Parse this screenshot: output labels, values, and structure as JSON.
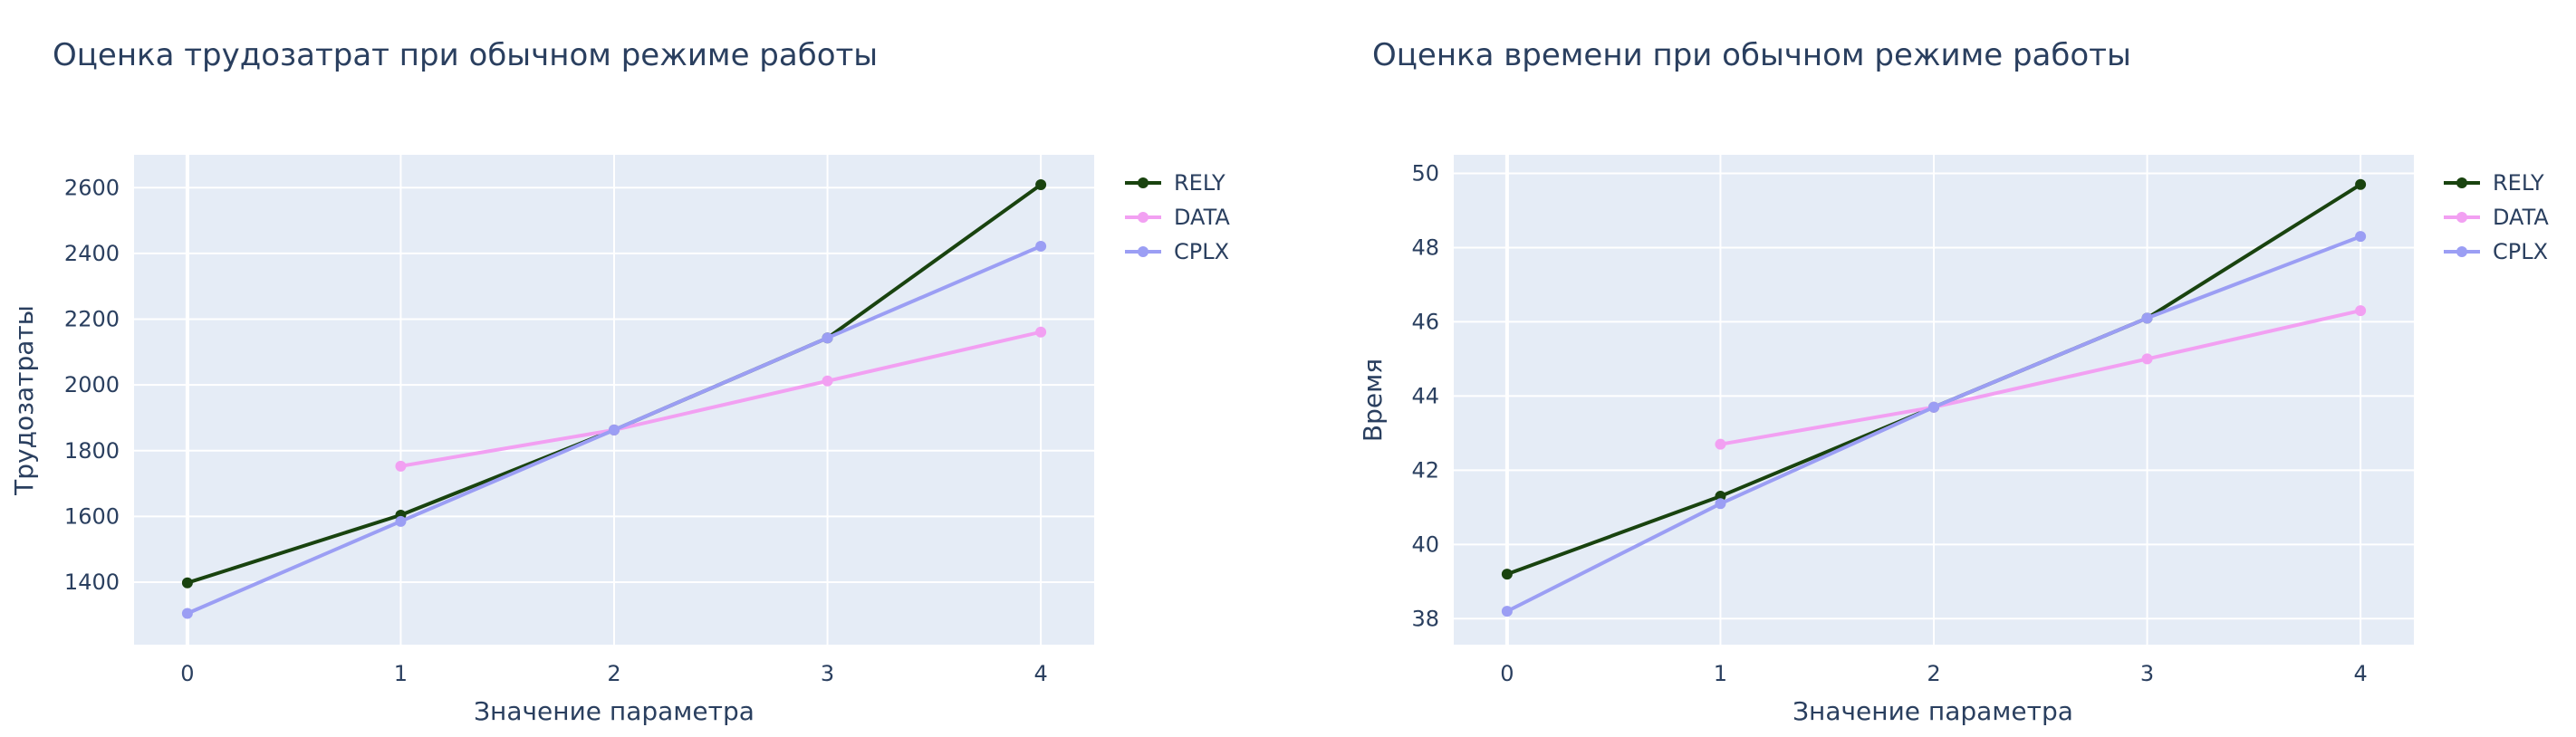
{
  "chart_data": [
    {
      "type": "line",
      "title": "Оценка трудозатрат при обычном режиме работы",
      "xlabel": "Значение параметра",
      "ylabel": "Трудозатраты",
      "x": [
        0,
        1,
        2,
        3,
        4
      ],
      "xlim": [
        -0.25,
        4.25
      ],
      "ylim": [
        1210,
        2700
      ],
      "xticks": [
        0,
        1,
        2,
        3,
        4
      ],
      "yticks": [
        1400,
        1600,
        1800,
        2000,
        2200,
        2400,
        2600
      ],
      "grid": true,
      "legend_position": "top-right, outside plot",
      "series": [
        {
          "name": "RELY",
          "color": "#19430f",
          "x": [
            0,
            1,
            2,
            3,
            4
          ],
          "values": [
            1398,
            1604,
            1863,
            2143,
            2609
          ]
        },
        {
          "name": "DATA",
          "color": "#f2a0f2",
          "x": [
            1,
            2,
            3,
            4
          ],
          "values": [
            1753,
            1863,
            2012,
            2161
          ]
        },
        {
          "name": "CPLX",
          "color": "#9b9ef4",
          "x": [
            0,
            1,
            2,
            3,
            4
          ],
          "values": [
            1305,
            1585,
            1863,
            2143,
            2422
          ]
        }
      ]
    },
    {
      "type": "line",
      "title": "Оценка времени при обычном режиме работы",
      "xlabel": "Значение параметра",
      "ylabel": "Время",
      "x": [
        0,
        1,
        2,
        3,
        4
      ],
      "xlim": [
        -0.25,
        4.25
      ],
      "ylim": [
        37.3,
        50.5
      ],
      "xticks": [
        0,
        1,
        2,
        3,
        4
      ],
      "yticks": [
        38,
        40,
        42,
        44,
        46,
        48,
        50
      ],
      "grid": true,
      "legend_position": "top-right, outside plot",
      "series": [
        {
          "name": "RELY",
          "color": "#19430f",
          "x": [
            0,
            1,
            2,
            3,
            4
          ],
          "values": [
            39.2,
            41.3,
            43.7,
            46.1,
            49.7
          ]
        },
        {
          "name": "DATA",
          "color": "#f2a0f2",
          "x": [
            1,
            2,
            3,
            4
          ],
          "values": [
            42.7,
            43.7,
            45.0,
            46.3
          ]
        },
        {
          "name": "CPLX",
          "color": "#9b9ef4",
          "x": [
            0,
            1,
            2,
            3,
            4
          ],
          "values": [
            38.2,
            41.1,
            43.7,
            46.1,
            48.3
          ]
        }
      ]
    }
  ]
}
